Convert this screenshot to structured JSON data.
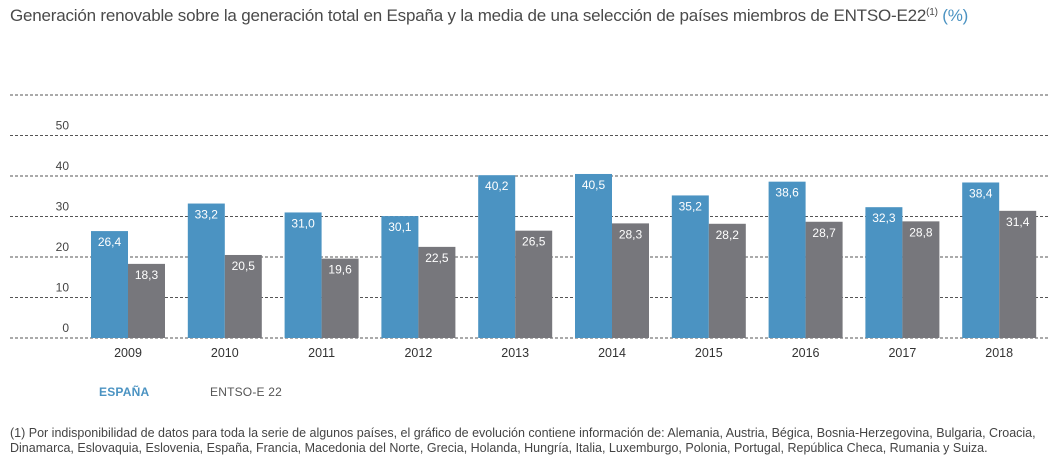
{
  "title": {
    "main": "Generación renovable sobre la generación total en España y la media de una selección de países miembros de ENTSO-E22",
    "note_ref": "(1)",
    "unit": "(%)"
  },
  "legend": {
    "espana": "ESPAÑA",
    "entso": "ENTSO-E 22"
  },
  "footnote": "(1) Por indisponibilidad de datos para toda la serie de algunos países, el gráfico de evolución contiene información de: Alemania, Austria, Bégica, Bosnia-Herzegovina, Bulgaria, Croacia, Dinamarca, Eslovaquia, Eslovenia, España, Francia, Macedonia del Norte, Grecia, Holanda, Hungría, Italia, Luxemburgo, Polonia, Portugal, República Checa, Rumania y Suiza.",
  "colors": {
    "espana": "#4b93c2",
    "entso": "#77777c",
    "grid": "#555555"
  },
  "chart_data": {
    "type": "bar",
    "categories": [
      "2009",
      "2010",
      "2011",
      "2012",
      "2013",
      "2014",
      "2015",
      "2016",
      "2017",
      "2018"
    ],
    "series": [
      {
        "name": "ESPAÑA",
        "values": [
          26.4,
          33.2,
          31.0,
          30.1,
          40.2,
          40.5,
          35.2,
          38.6,
          32.3,
          38.4
        ],
        "labels": [
          "26,4",
          "33,2",
          "31,0",
          "30,1",
          "40,2",
          "40,5",
          "35,2",
          "38,6",
          "32,3",
          "38,4"
        ]
      },
      {
        "name": "ENTSO-E 22",
        "values": [
          18.3,
          20.5,
          19.6,
          22.5,
          26.5,
          28.3,
          28.2,
          28.7,
          28.8,
          31.4
        ],
        "labels": [
          "18,3",
          "20,5",
          "19,6",
          "22,5",
          "26,5",
          "28,3",
          "28,2",
          "28,7",
          "28,8",
          "31,4"
        ]
      }
    ],
    "yticks": [
      "0",
      "10",
      "20",
      "30",
      "40",
      "50"
    ],
    "ylim": [
      0,
      60
    ],
    "grid": true
  }
}
